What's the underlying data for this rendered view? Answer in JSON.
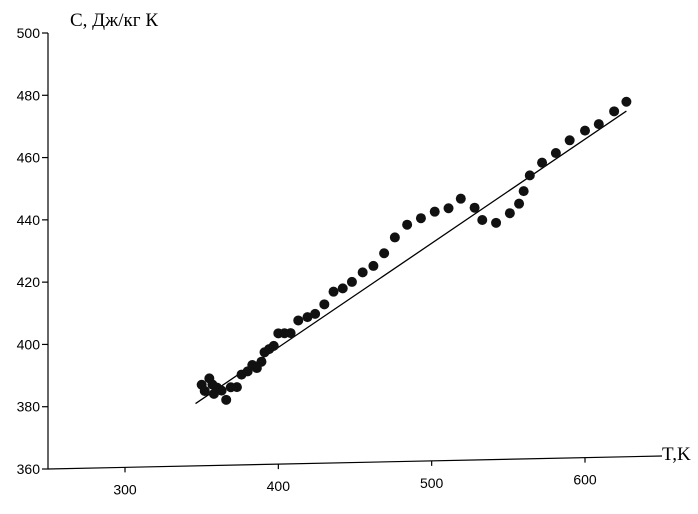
{
  "chart_data": {
    "type": "scatter",
    "title": "",
    "xlabel": "T,K",
    "ylabel": "C, Дж/кг К",
    "xlim": [
      240,
      650
    ],
    "ylim": [
      360,
      500
    ],
    "x_ticks": [
      300,
      400,
      500,
      600
    ],
    "y_ticks": [
      360,
      380,
      400,
      420,
      440,
      460,
      480,
      500
    ],
    "grid": false,
    "legend": "none",
    "series": [
      {
        "type": "scatter",
        "points": [
          [
            350,
            386
          ],
          [
            352,
            384
          ],
          [
            355,
            388
          ],
          [
            357,
            386
          ],
          [
            358,
            383
          ],
          [
            360,
            385
          ],
          [
            363,
            384
          ],
          [
            366,
            381
          ],
          [
            369,
            385
          ],
          [
            373,
            385
          ],
          [
            376,
            389
          ],
          [
            380,
            390
          ],
          [
            383,
            392
          ],
          [
            386,
            391
          ],
          [
            389,
            393
          ],
          [
            391,
            396
          ],
          [
            394,
            397
          ],
          [
            397,
            398
          ],
          [
            400,
            402
          ],
          [
            404,
            402
          ],
          [
            408,
            402
          ],
          [
            413,
            406
          ],
          [
            419,
            407
          ],
          [
            424,
            408
          ],
          [
            430,
            411
          ],
          [
            436,
            415
          ],
          [
            442,
            416
          ],
          [
            448,
            418
          ],
          [
            455,
            421
          ],
          [
            462,
            423
          ],
          [
            469,
            427
          ],
          [
            476,
            432
          ],
          [
            484,
            436
          ],
          [
            493,
            438
          ],
          [
            502,
            440
          ],
          [
            511,
            441
          ],
          [
            519,
            444
          ],
          [
            528,
            441
          ],
          [
            533,
            437
          ],
          [
            542,
            436
          ],
          [
            551,
            439
          ],
          [
            557,
            442
          ],
          [
            560,
            446
          ],
          [
            564,
            451
          ],
          [
            572,
            455
          ],
          [
            581,
            458
          ],
          [
            590,
            462
          ],
          [
            600,
            465
          ],
          [
            609,
            467
          ],
          [
            619,
            471
          ],
          [
            627,
            474
          ]
        ]
      },
      {
        "type": "line",
        "points": [
          [
            346,
            380
          ],
          [
            627,
            471
          ]
        ]
      }
    ]
  }
}
